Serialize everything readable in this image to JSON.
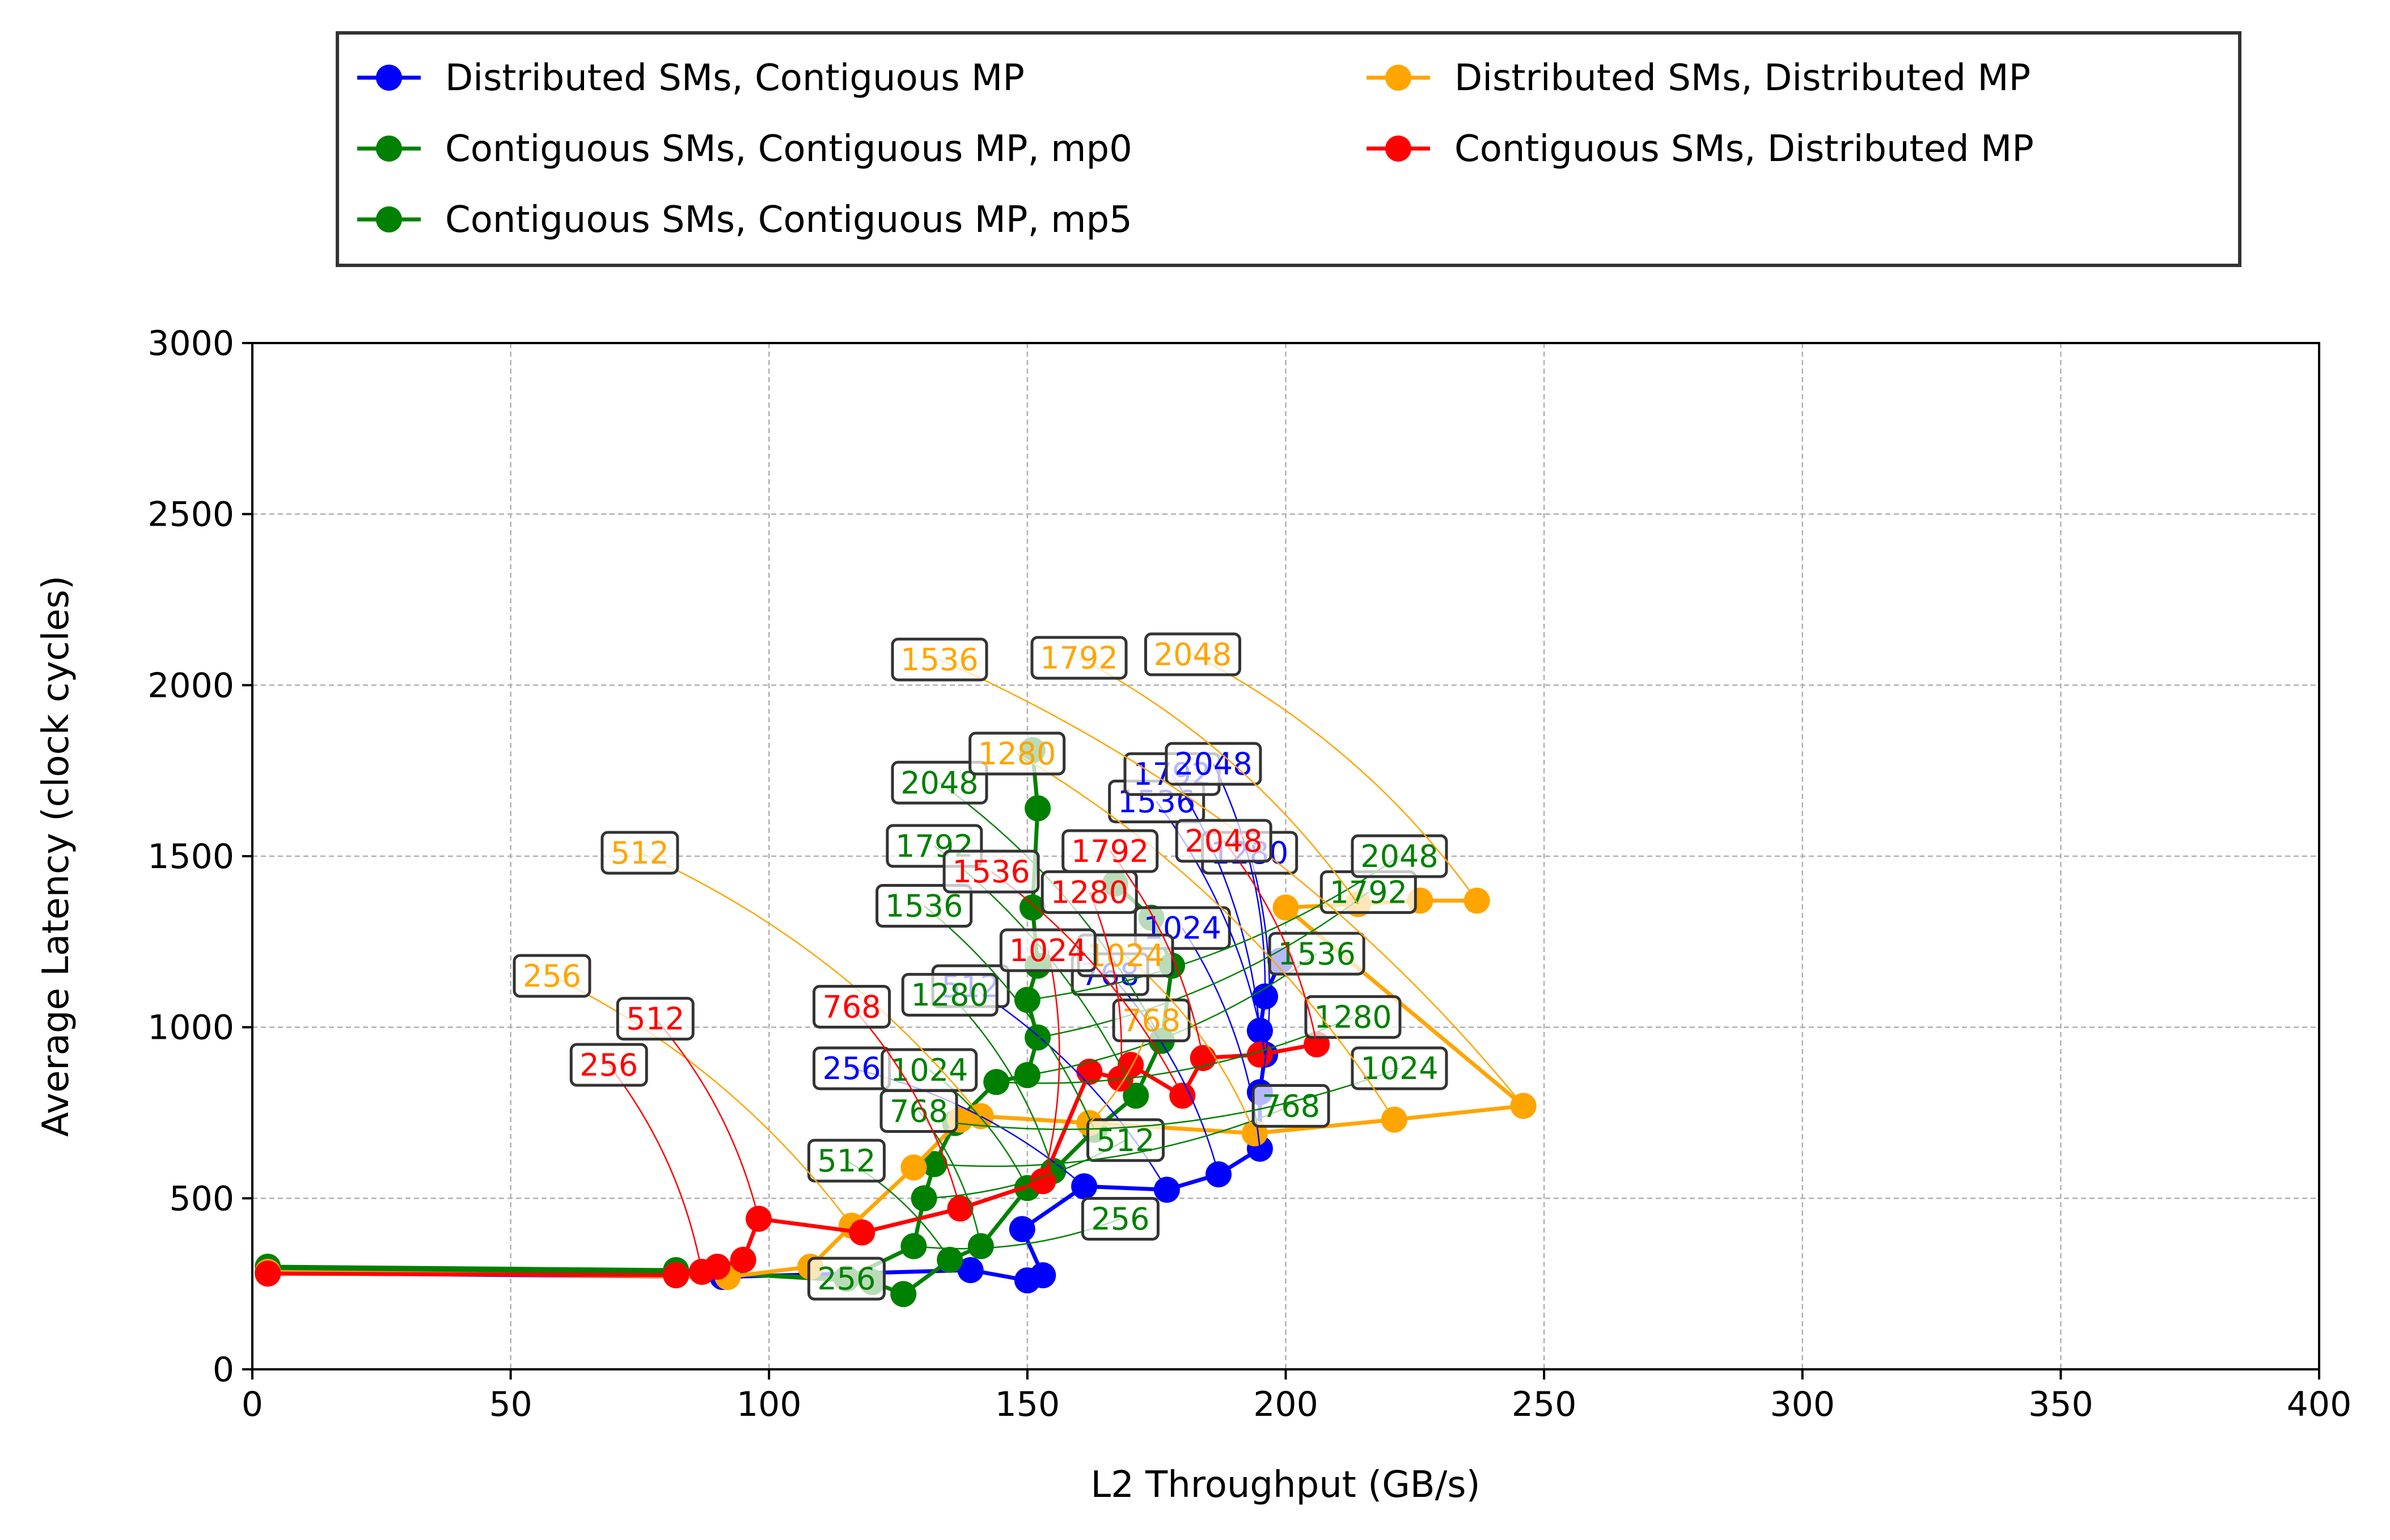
{
  "chart_data": {
    "type": "line",
    "xlabel": "L2 Throughput (GB/s)",
    "ylabel": "Average Latency (clock cycles)",
    "xlim": [
      0,
      400
    ],
    "ylim": [
      0,
      3000
    ],
    "xticks": [
      0,
      50,
      100,
      150,
      200,
      250,
      300,
      350,
      400
    ],
    "yticks": [
      0,
      500,
      1000,
      1500,
      2000,
      2500,
      3000
    ],
    "grid": true,
    "legend_placement": "top-center, outside plot, two columns",
    "series": [
      {
        "name": "Distributed SMs, Contiguous MP",
        "color": "#0000ff",
        "x": [
          3,
          91,
          139,
          150,
          153,
          149,
          161,
          177,
          187,
          195,
          195,
          196,
          195,
          196,
          199
        ],
        "y": [
          282,
          270,
          290,
          260,
          275,
          410,
          535,
          525,
          570,
          645,
          810,
          920,
          990,
          1090,
          1195
        ],
        "labels": [
          {
            "text": "256",
            "x": 161,
            "y": 535,
            "box_x": 116,
            "box_y": 880
          },
          {
            "text": "512",
            "x": 177,
            "y": 525,
            "box_x": 139,
            "box_y": 1120
          },
          {
            "text": "768",
            "x": 187,
            "y": 570,
            "box_x": 166,
            "box_y": 1155
          },
          {
            "text": "1024",
            "x": 195,
            "y": 645,
            "box_x": 180,
            "box_y": 1290
          },
          {
            "text": "1280",
            "x": 195,
            "y": 810,
            "box_x": 193,
            "box_y": 1510
          },
          {
            "text": "1536",
            "x": 196,
            "y": 920,
            "box_x": 175,
            "box_y": 1660
          },
          {
            "text": "1792",
            "x": 195,
            "y": 990,
            "box_x": 178,
            "box_y": 1740
          },
          {
            "text": "2048",
            "x": 196,
            "y": 1090,
            "box_x": 186,
            "box_y": 1770
          }
        ]
      },
      {
        "name": "Contiguous SMs, Contiguous MP, mp0",
        "color": "#008000",
        "x": [
          3,
          82,
          120,
          126,
          135,
          141,
          150,
          155,
          163,
          171,
          176,
          178,
          174,
          167
        ],
        "y": [
          300,
          290,
          255,
          220,
          320,
          360,
          530,
          580,
          700,
          800,
          960,
          1180,
          1320,
          1420
        ],
        "labels": [
          {
            "text": "256",
            "x": 126,
            "y": 220,
            "box_x": 115,
            "box_y": 265
          },
          {
            "text": "512",
            "x": 135,
            "y": 320,
            "box_x": 115,
            "box_y": 610
          },
          {
            "text": "768",
            "x": 141,
            "y": 360,
            "box_x": 129,
            "box_y": 755
          },
          {
            "text": "1024",
            "x": 150,
            "y": 530,
            "box_x": 131,
            "box_y": 875
          },
          {
            "text": "1280",
            "x": 155,
            "y": 580,
            "box_x": 135,
            "box_y": 1095
          },
          {
            "text": "1536",
            "x": 163,
            "y": 700,
            "box_x": 130,
            "box_y": 1355
          },
          {
            "text": "1792",
            "x": 171,
            "y": 800,
            "box_x": 132,
            "box_y": 1530
          },
          {
            "text": "2048",
            "x": 176,
            "y": 960,
            "box_x": 133,
            "box_y": 1715
          }
        ]
      },
      {
        "name": "Contiguous SMs, Contiguous MP, mp5",
        "color": "#008000",
        "x": [
          3,
          82,
          115,
          128,
          130,
          132,
          136,
          144,
          150,
          152,
          150,
          152,
          151,
          152,
          151
        ],
        "y": [
          290,
          285,
          265,
          360,
          500,
          600,
          720,
          840,
          860,
          970,
          1080,
          1180,
          1350,
          1640,
          1810
        ],
        "labels": [
          {
            "text": "256",
            "x": 128,
            "y": 360,
            "box_x": 168,
            "box_y": 440
          },
          {
            "text": "512",
            "x": 130,
            "y": 500,
            "box_x": 169,
            "box_y": 670
          },
          {
            "text": "768",
            "x": 132,
            "y": 600,
            "box_x": 201,
            "box_y": 770
          },
          {
            "text": "1024",
            "x": 136,
            "y": 720,
            "box_x": 222,
            "box_y": 880
          },
          {
            "text": "1280",
            "x": 144,
            "y": 840,
            "box_x": 213,
            "box_y": 1030
          },
          {
            "text": "1536",
            "x": 150,
            "y": 860,
            "box_x": 206,
            "box_y": 1215
          },
          {
            "text": "1792",
            "x": 152,
            "y": 970,
            "box_x": 216,
            "box_y": 1395
          },
          {
            "text": "2048",
            "x": 150,
            "y": 1080,
            "box_x": 222,
            "box_y": 1500
          }
        ]
      },
      {
        "name": "Distributed SMs, Distributed MP",
        "color": "#ffa500",
        "x": [
          3,
          92,
          108,
          116,
          128,
          137,
          141,
          162,
          194,
          221,
          246,
          200,
          214,
          226,
          237
        ],
        "y": [
          285,
          270,
          300,
          420,
          590,
          730,
          740,
          720,
          690,
          730,
          770,
          1350,
          1360,
          1370,
          1370
        ],
        "labels": [
          {
            "text": "256",
            "x": 116,
            "y": 420,
            "box_x": 58,
            "box_y": 1150
          },
          {
            "text": "512",
            "x": 141,
            "y": 740,
            "box_x": 75,
            "box_y": 1510
          },
          {
            "text": "768",
            "x": 162,
            "y": 720,
            "box_x": 174,
            "box_y": 1020
          },
          {
            "text": "1024",
            "x": 194,
            "y": 690,
            "box_x": 169,
            "box_y": 1210
          },
          {
            "text": "1280",
            "x": 221,
            "y": 730,
            "box_x": 148,
            "box_y": 1800
          },
          {
            "text": "1536",
            "x": 246,
            "y": 770,
            "box_x": 133,
            "box_y": 2075
          },
          {
            "text": "1792",
            "x": 214,
            "y": 1360,
            "box_x": 160,
            "box_y": 2080
          },
          {
            "text": "2048",
            "x": 237,
            "y": 1370,
            "box_x": 182,
            "box_y": 2090
          }
        ]
      },
      {
        "name": "Contiguous SMs, Distributed MP",
        "color": "#ff0000",
        "x": [
          3,
          82,
          87,
          90,
          95,
          98,
          118,
          137,
          153,
          162,
          168,
          170,
          180,
          184,
          195,
          206
        ],
        "y": [
          280,
          275,
          285,
          300,
          320,
          440,
          400,
          470,
          550,
          870,
          850,
          890,
          800,
          910,
          920,
          950
        ],
        "labels": [
          {
            "text": "256",
            "x": 87,
            "y": 285,
            "box_x": 69,
            "box_y": 890
          },
          {
            "text": "512",
            "x": 98,
            "y": 440,
            "box_x": 78,
            "box_y": 1025
          },
          {
            "text": "768",
            "x": 137,
            "y": 470,
            "box_x": 116,
            "box_y": 1060
          },
          {
            "text": "1024",
            "x": 153,
            "y": 550,
            "box_x": 154,
            "box_y": 1225
          },
          {
            "text": "1280",
            "x": 168,
            "y": 850,
            "box_x": 162,
            "box_y": 1395
          },
          {
            "text": "1536",
            "x": 180,
            "y": 800,
            "box_x": 143,
            "box_y": 1455
          },
          {
            "text": "1792",
            "x": 184,
            "y": 910,
            "box_x": 166,
            "box_y": 1515
          },
          {
            "text": "2048",
            "x": 206,
            "y": 950,
            "box_x": 188,
            "box_y": 1545
          }
        ]
      }
    ]
  }
}
